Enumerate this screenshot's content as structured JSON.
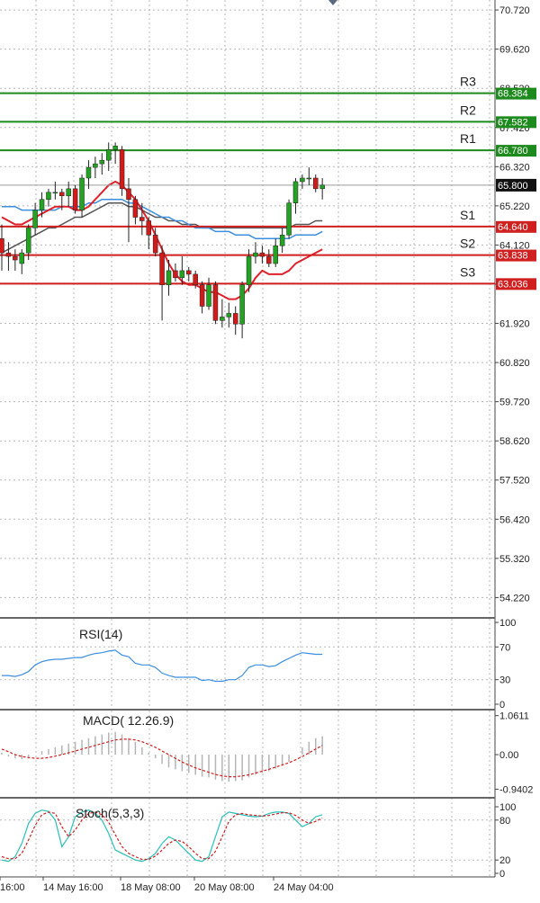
{
  "colors": {
    "background": "#ffffff",
    "grid": "#b8b8b8",
    "axis": "#444444",
    "bull_candle": "#22a322",
    "bear_candle": "#d11a1a",
    "wick": "#222222",
    "resistance": "#1d8a1d",
    "support": "#d01f1f",
    "ma_red": "#e0202a",
    "ma_blue": "#3d8fe0",
    "ma_gray": "#555555",
    "rsi": "#3d8fe0",
    "macd_hist": "#b5b5b5",
    "macd_signal": "#d01f1f",
    "stoch_main": "#2abfb8",
    "stoch_signal": "#d01f1f",
    "price_box": "#111111",
    "price_box_text": "#ffffff"
  },
  "chart_data": [
    {
      "type": "candlestick",
      "id": "price",
      "ylim": [
        53.7,
        71.0
      ],
      "y_ticks": [
        "70.720",
        "69.620",
        "68.520",
        "67.420",
        "66.320",
        "65.220",
        "64.120",
        "63.020",
        "61.920",
        "60.820",
        "59.720",
        "58.620",
        "57.520",
        "56.420",
        "55.320",
        "54.220"
      ],
      "x_labels": [
        "16:00",
        "14 May 16:00",
        "18 May 08:00",
        "20 May 08:00",
        "24 May 04:00"
      ],
      "current_price": "65.800",
      "levels": [
        {
          "name": "R3",
          "value": 68.384,
          "label": "68.384",
          "kind": "resistance"
        },
        {
          "name": "R2",
          "value": 67.582,
          "label": "67.582",
          "kind": "resistance"
        },
        {
          "name": "R1",
          "value": 66.78,
          "label": "66.780",
          "kind": "resistance"
        },
        {
          "name": "S1",
          "value": 64.64,
          "label": "64.640",
          "kind": "support"
        },
        {
          "name": "S2",
          "value": 63.838,
          "label": "63.838",
          "kind": "support"
        },
        {
          "name": "S3",
          "value": 63.036,
          "label": "63.036",
          "kind": "support"
        }
      ],
      "candles": [
        [
          64.3,
          64.7,
          63.4,
          63.9
        ],
        [
          63.9,
          64.2,
          63.4,
          63.8
        ],
        [
          63.8,
          64.0,
          63.4,
          63.7
        ],
        [
          63.6,
          64.0,
          63.3,
          63.9
        ],
        [
          63.9,
          64.7,
          63.7,
          64.6
        ],
        [
          64.6,
          65.3,
          64.4,
          65.1
        ],
        [
          65.1,
          65.6,
          64.9,
          65.4
        ],
        [
          65.4,
          65.7,
          65.2,
          65.6
        ],
        [
          65.6,
          65.9,
          65.4,
          65.6
        ],
        [
          65.6,
          65.7,
          65.1,
          65.5
        ],
        [
          65.5,
          65.9,
          65.2,
          65.7
        ],
        [
          65.7,
          65.8,
          65.0,
          65.1
        ],
        [
          65.1,
          66.1,
          64.9,
          66.0
        ],
        [
          66.0,
          66.5,
          65.7,
          66.3
        ],
        [
          66.3,
          66.6,
          66.0,
          66.4
        ],
        [
          66.4,
          66.7,
          66.1,
          66.5
        ],
        [
          66.5,
          67.0,
          66.2,
          66.8
        ],
        [
          66.8,
          67.0,
          66.4,
          66.9
        ],
        [
          66.8,
          66.9,
          65.5,
          65.7
        ],
        [
          65.7,
          66.0,
          64.2,
          65.4
        ],
        [
          65.4,
          65.5,
          64.7,
          64.9
        ],
        [
          64.9,
          65.3,
          64.4,
          64.8
        ],
        [
          64.8,
          64.9,
          64.0,
          64.4
        ],
        [
          64.4,
          64.6,
          63.8,
          63.9
        ],
        [
          63.9,
          64.1,
          62.0,
          63.0
        ],
        [
          63.0,
          63.7,
          62.7,
          63.4
        ],
        [
          63.4,
          63.6,
          63.1,
          63.2
        ],
        [
          63.2,
          63.8,
          63.0,
          63.4
        ],
        [
          63.4,
          63.5,
          63.1,
          63.3
        ],
        [
          63.3,
          63.4,
          62.9,
          63.0
        ],
        [
          63.0,
          63.1,
          62.2,
          62.4
        ],
        [
          62.4,
          63.2,
          62.3,
          63.0
        ],
        [
          63.0,
          63.1,
          61.9,
          62.0
        ],
        [
          62.0,
          62.6,
          61.8,
          62.1
        ],
        [
          62.1,
          62.5,
          61.8,
          62.2
        ],
        [
          62.2,
          62.4,
          61.6,
          61.9
        ],
        [
          61.9,
          63.1,
          61.5,
          63.0
        ],
        [
          63.0,
          64.0,
          62.8,
          63.8
        ],
        [
          63.8,
          64.2,
          63.6,
          63.9
        ],
        [
          63.9,
          64.1,
          63.6,
          63.8
        ],
        [
          63.8,
          64.0,
          63.5,
          63.6
        ],
        [
          63.6,
          64.3,
          63.5,
          64.1
        ],
        [
          64.1,
          64.6,
          63.9,
          64.4
        ],
        [
          64.4,
          65.4,
          64.3,
          65.3
        ],
        [
          65.3,
          66.0,
          65.0,
          65.9
        ],
        [
          65.9,
          66.1,
          65.7,
          66.0
        ],
        [
          66.0,
          66.3,
          65.8,
          66.0
        ],
        [
          66.0,
          66.1,
          65.6,
          65.7
        ],
        [
          65.7,
          66.0,
          65.4,
          65.8
        ]
      ],
      "ma_red": [
        64.9,
        64.8,
        64.7,
        64.7,
        64.8,
        64.9,
        65.0,
        65.1,
        65.2,
        65.2,
        65.2,
        65.1,
        65.1,
        65.2,
        65.4,
        65.6,
        65.8,
        65.9,
        65.8,
        65.6,
        65.4,
        65.1,
        64.8,
        64.4,
        64.0,
        63.6,
        63.3,
        63.1,
        63.0,
        63.0,
        62.9,
        62.8,
        62.8,
        62.7,
        62.6,
        62.6,
        62.7,
        62.9,
        63.2,
        63.4,
        63.3,
        63.3,
        63.3,
        63.4,
        63.6,
        63.7,
        63.8,
        63.9,
        64.0
      ],
      "ma_blue": [
        65.2,
        65.2,
        65.2,
        65.1,
        65.1,
        65.1,
        65.1,
        65.1,
        65.1,
        65.2,
        65.2,
        65.2,
        65.2,
        65.3,
        65.3,
        65.4,
        65.4,
        65.4,
        65.4,
        65.3,
        65.3,
        65.2,
        65.1,
        65.0,
        64.9,
        64.9,
        64.8,
        64.8,
        64.7,
        64.6,
        64.6,
        64.6,
        64.5,
        64.5,
        64.5,
        64.4,
        64.4,
        64.4,
        64.3,
        64.3,
        64.3,
        64.3,
        64.3,
        64.3,
        64.4,
        64.4,
        64.4,
        64.4,
        64.5
      ],
      "ma_gray": [
        63.9,
        64.0,
        64.1,
        64.2,
        64.3,
        64.4,
        64.5,
        64.6,
        64.6,
        64.7,
        64.8,
        64.9,
        64.9,
        65.0,
        65.1,
        65.2,
        65.3,
        65.3,
        65.3,
        65.2,
        65.2,
        65.1,
        65.0,
        64.9,
        64.9,
        64.8,
        64.8,
        64.7,
        64.7,
        64.7,
        64.6,
        64.6,
        64.6,
        64.6,
        64.6,
        64.6,
        64.6,
        64.6,
        64.6,
        64.6,
        64.6,
        64.6,
        64.6,
        64.6,
        64.7,
        64.7,
        64.7,
        64.8,
        64.8
      ]
    },
    {
      "type": "line",
      "id": "rsi",
      "label": "RSI(14)",
      "ylim": [
        0,
        100
      ],
      "y_ticks": [
        "100",
        "70",
        "30",
        "0"
      ],
      "tick_values": [
        100,
        70,
        30,
        0
      ],
      "values": [
        35,
        35,
        34,
        36,
        40,
        48,
        52,
        54,
        55,
        55,
        56,
        57,
        57,
        60,
        62,
        63,
        65,
        66,
        60,
        58,
        50,
        48,
        48,
        45,
        38,
        35,
        33,
        33,
        33,
        33,
        29,
        30,
        28,
        28,
        30,
        30,
        35,
        45,
        48,
        48,
        46,
        47,
        52,
        56,
        60,
        63,
        62,
        61,
        61
      ]
    },
    {
      "type": "bar+line",
      "id": "macd",
      "label": "MACD( 12.26.9)",
      "ylim": [
        -1.1,
        1.2
      ],
      "y_ticks": [
        "1.0611",
        "0.00",
        "-0.9402"
      ],
      "tick_values": [
        1.0611,
        0.0,
        -0.9402
      ],
      "histogram": [
        0.05,
        -0.05,
        -0.1,
        -0.12,
        -0.1,
        0.0,
        0.1,
        0.15,
        0.2,
        0.25,
        0.3,
        0.35,
        0.4,
        0.45,
        0.5,
        0.55,
        0.6,
        0.62,
        0.55,
        0.45,
        0.35,
        0.2,
        0.05,
        -0.1,
        -0.25,
        -0.35,
        -0.4,
        -0.45,
        -0.5,
        -0.55,
        -0.6,
        -0.62,
        -0.68,
        -0.72,
        -0.74,
        -0.72,
        -0.7,
        -0.62,
        -0.55,
        -0.5,
        -0.45,
        -0.38,
        -0.3,
        -0.2,
        0.0,
        0.2,
        0.35,
        0.45,
        0.5
      ],
      "signal": [
        0.15,
        0.08,
        0.0,
        -0.05,
        -0.08,
        -0.1,
        -0.1,
        -0.08,
        -0.04,
        0.0,
        0.05,
        0.1,
        0.15,
        0.2,
        0.25,
        0.3,
        0.35,
        0.4,
        0.42,
        0.42,
        0.4,
        0.35,
        0.28,
        0.2,
        0.1,
        0.0,
        -0.1,
        -0.2,
        -0.28,
        -0.36,
        -0.42,
        -0.48,
        -0.54,
        -0.58,
        -0.6,
        -0.6,
        -0.58,
        -0.55,
        -0.5,
        -0.45,
        -0.4,
        -0.34,
        -0.28,
        -0.22,
        -0.14,
        -0.05,
        0.05,
        0.15,
        0.25
      ]
    },
    {
      "type": "line",
      "id": "stoch",
      "label": "Stoch(5,3,3)",
      "ylim": [
        0,
        100
      ],
      "y_ticks": [
        "100",
        "80",
        "20",
        "0"
      ],
      "tick_values": [
        100,
        80,
        20,
        0
      ],
      "main": [
        20,
        18,
        25,
        45,
        75,
        90,
        95,
        93,
        80,
        40,
        55,
        85,
        92,
        95,
        90,
        80,
        60,
        35,
        30,
        25,
        20,
        18,
        22,
        30,
        45,
        55,
        50,
        40,
        30,
        20,
        18,
        25,
        55,
        85,
        92,
        90,
        88,
        86,
        85,
        86,
        90,
        92,
        92,
        90,
        80,
        70,
        75,
        85,
        88
      ],
      "signal": [
        25,
        22,
        22,
        30,
        50,
        72,
        88,
        92,
        90,
        70,
        55,
        65,
        80,
        90,
        92,
        88,
        77,
        58,
        40,
        30,
        25,
        21,
        21,
        26,
        35,
        45,
        50,
        48,
        40,
        30,
        22,
        22,
        33,
        55,
        78,
        88,
        90,
        88,
        87,
        86,
        87,
        89,
        91,
        91,
        87,
        80,
        75,
        78,
        83
      ]
    }
  ]
}
